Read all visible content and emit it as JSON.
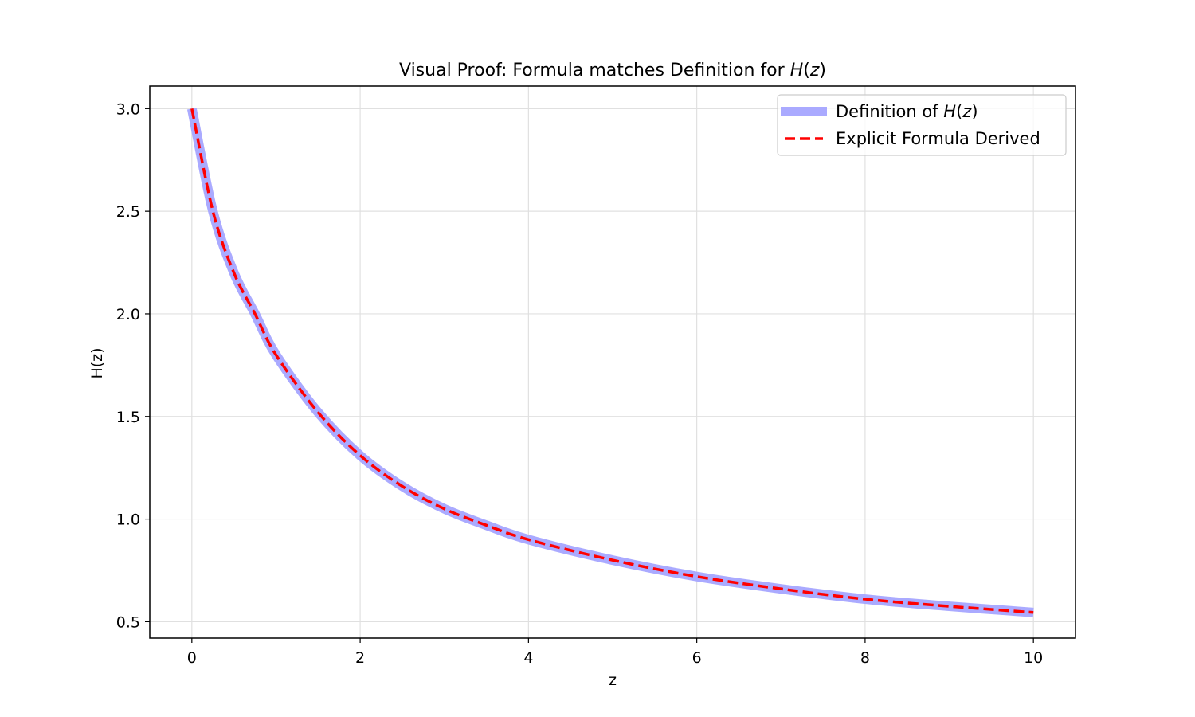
{
  "chart_data": {
    "type": "line",
    "title": {
      "prefix": "Visual Proof: Formula matches Definition for ",
      "func": "H",
      "open": "(",
      "var": "z",
      "close": ")"
    },
    "xlabel": "z",
    "ylabel": "H(z)",
    "xlim": [
      -0.5,
      10.5
    ],
    "ylim": [
      0.42,
      3.11
    ],
    "x_ticks": [
      0,
      2,
      4,
      6,
      8,
      10
    ],
    "x_tick_labels": [
      "0",
      "2",
      "4",
      "6",
      "8",
      "10"
    ],
    "y_ticks": [
      0.5,
      1.0,
      1.5,
      2.0,
      2.5,
      3.0
    ],
    "y_tick_labels": [
      "0.5",
      "1.0",
      "1.5",
      "2.0",
      "2.5",
      "3.0"
    ],
    "grid": true,
    "legend_position": "upper right",
    "x": [
      0,
      0.25,
      0.5,
      0.75,
      1,
      1.5,
      2,
      2.5,
      3,
      3.5,
      4,
      5,
      6,
      7,
      8,
      9,
      10
    ],
    "series": [
      {
        "name_prefix": "Definition of ",
        "name_func": "H",
        "name_open": "(",
        "name_var": "z",
        "name_close": ")",
        "color": "#aaaaff",
        "style": "solid",
        "values": [
          3.0,
          2.5,
          2.2,
          2.0,
          1.8,
          1.52,
          1.31,
          1.16,
          1.05,
          0.97,
          0.9,
          0.8,
          0.72,
          0.66,
          0.61,
          0.575,
          0.545
        ]
      },
      {
        "name": "Explicit Formula Derived",
        "color": "#ff0000",
        "style": "dashed",
        "values": [
          3.0,
          2.5,
          2.2,
          2.0,
          1.8,
          1.52,
          1.31,
          1.16,
          1.05,
          0.97,
          0.9,
          0.8,
          0.72,
          0.66,
          0.61,
          0.575,
          0.545
        ]
      }
    ]
  }
}
